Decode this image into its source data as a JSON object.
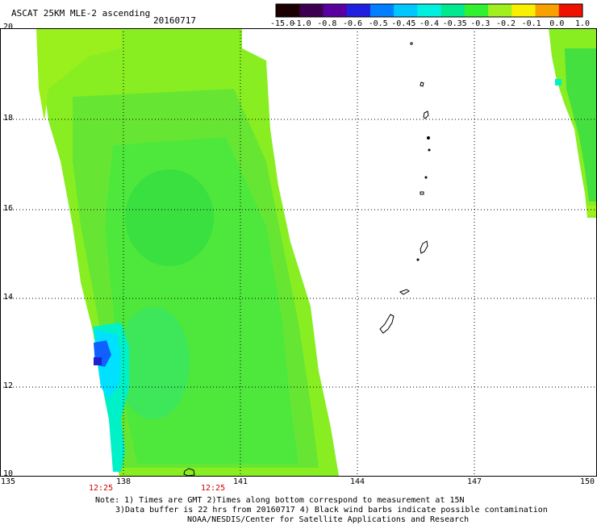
{
  "header": {
    "title": "ASCAT 25KM MLE-2 ascending",
    "date": "20160717"
  },
  "colorbar": {
    "labels": [
      "-15.0",
      "-1.0",
      "-0.8",
      "-0.6",
      "-0.5",
      "-0.45",
      "-0.4",
      "-0.35",
      "-0.3",
      "-0.2",
      "-0.1",
      "0.0",
      "1.0"
    ],
    "colors": [
      "#1a0000",
      "#3d0050",
      "#5a00a0",
      "#2020e0",
      "#0080ff",
      "#00c8ff",
      "#00f0e0",
      "#00e890",
      "#30f030",
      "#a0f020",
      "#f8f000",
      "#f8a000",
      "#f01000"
    ]
  },
  "axes": {
    "lat_labels": [
      "20",
      "18",
      "16",
      "14",
      "12",
      "10"
    ],
    "lon_labels": [
      "135",
      "138",
      "141",
      "144",
      "147",
      "150"
    ]
  },
  "times": [
    "12:25",
    "12:25"
  ],
  "notes": [
    "Note: 1) Times are GMT 2)Times along bottom correspond to measurement at 15N",
    "3)Data buffer is 22 hrs from 20160717 4) Black wind barbs indicate possible contamination",
    "NOAA/NESDIS/Center for Satellite Applications and Research"
  ],
  "colors": {
    "swath_main": "#88ee22",
    "swath_green": "#44e844",
    "swath_cyan": "#00f0e0",
    "swath_blue": "#1040f0"
  }
}
